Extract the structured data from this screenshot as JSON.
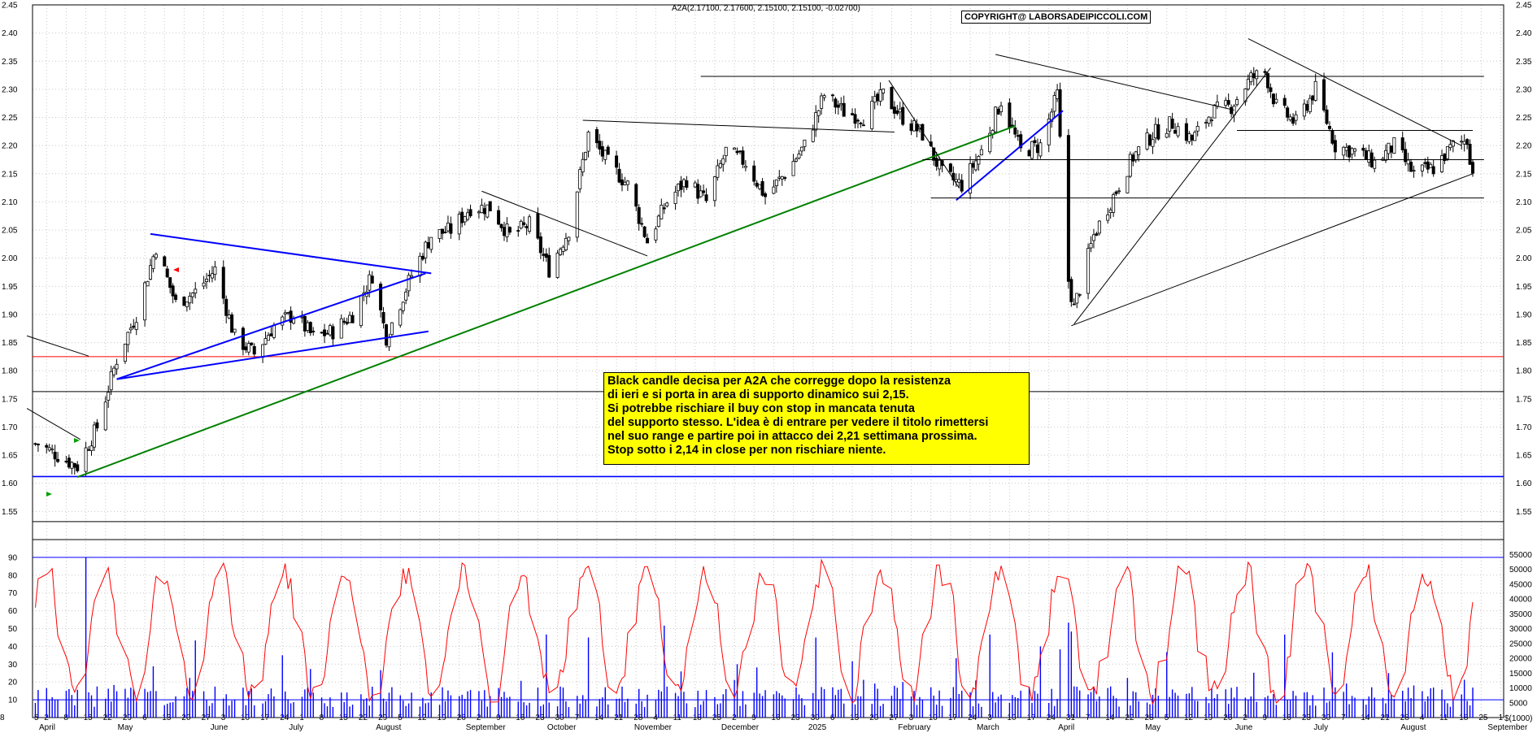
{
  "header": {
    "ticker_info": "A2A(2.17100, 2.17600, 2.15100, 2.15100, -0.02700)",
    "copyright": "COPYRIGHT@ LABORSADEIPICCOLI.COM"
  },
  "annotation": {
    "lines": [
      "Black candle decisa per A2A che corregge dopo la resistenza",
      "di ieri e si porta in area di supporto dinamico sui 2,15.",
      "Si potrebbe rischiare il buy con stop in mancata tenuta",
      "del supporto stesso. L'idea è di entrare per vedere il titolo rimettersi",
      "nel suo range e partire poi in attacco dei 2,21 settimana prossima.",
      "Stop sotto i 2,14 in close per non rischiare niente."
    ]
  },
  "colors": {
    "price": "#000000",
    "support_blue": "#0000ff",
    "trend_green": "#008000",
    "resistance_red": "#ff0000",
    "volume": "#0000ff",
    "oscillator": "#ff0000",
    "annotation_bg": "#ffff00"
  },
  "chart_data": [
    {
      "type": "candlestick",
      "title": "A2A(2.17100, 2.17600, 2.15100, 2.15100, -0.02700)",
      "ylim": [
        1.5,
        2.45
      ],
      "y_ticks": [
        "1.55",
        "1.60",
        "1.65",
        "1.70",
        "1.75",
        "1.80",
        "1.85",
        "1.90",
        "1.95",
        "2.00",
        "2.05",
        "2.10",
        "2.15",
        "2.20",
        "2.25",
        "2.30",
        "2.35",
        "2.40",
        "2.45"
      ],
      "x_day_ticks": [
        "5",
        "2",
        "8",
        "15",
        "22",
        "29",
        "6",
        "13",
        "20",
        "27",
        "3",
        "10",
        "17",
        "24",
        "1",
        "8",
        "15",
        "22",
        "29",
        "5",
        "12",
        "19",
        "26",
        "2",
        "9",
        "16",
        "23",
        "30",
        "7",
        "14",
        "21",
        "28",
        "4",
        "11",
        "18",
        "25",
        "2",
        "9",
        "16",
        "23",
        "30",
        "6",
        "13",
        "20",
        "27",
        "3",
        "10",
        "17",
        "24",
        "3",
        "10",
        "17",
        "24",
        "31",
        "7",
        "14",
        "22",
        "28",
        "5",
        "12",
        "19",
        "26",
        "2",
        "9",
        "16",
        "23",
        "30",
        "7",
        "14",
        "21",
        "28",
        "4",
        "11",
        "18",
        "25",
        "1",
        "8"
      ],
      "x_month_labels": [
        "April",
        "May",
        "June",
        "July",
        "August",
        "September",
        "October",
        "November",
        "December",
        "2025",
        "February",
        "March",
        "April",
        "May",
        "June",
        "July",
        "August",
        "September"
      ],
      "last_ohlc": {
        "open": 2.171,
        "high": 2.176,
        "low": 2.151,
        "close": 2.151,
        "change": -0.027
      },
      "close_path": [
        [
          "2024-04-05",
          1.67
        ],
        [
          "2024-04-19",
          1.63
        ],
        [
          "2024-04-26",
          1.7
        ],
        [
          "2024-05-03",
          1.82
        ],
        [
          "2024-05-10",
          1.9
        ],
        [
          "2024-05-17",
          2.02
        ],
        [
          "2024-05-24",
          1.92
        ],
        [
          "2024-05-31",
          1.94
        ],
        [
          "2024-06-07",
          1.98
        ],
        [
          "2024-06-14",
          1.86
        ],
        [
          "2024-06-21",
          1.83
        ],
        [
          "2024-06-28",
          1.88
        ],
        [
          "2024-07-05",
          1.9
        ],
        [
          "2024-07-12",
          1.86
        ],
        [
          "2024-07-19",
          1.87
        ],
        [
          "2024-07-26",
          1.9
        ],
        [
          "2024-08-02",
          1.97
        ],
        [
          "2024-08-07",
          1.86
        ],
        [
          "2024-08-16",
          1.97
        ],
        [
          "2024-08-23",
          2.04
        ],
        [
          "2024-08-30",
          2.05
        ],
        [
          "2024-09-06",
          2.09
        ],
        [
          "2024-09-13",
          2.09
        ],
        [
          "2024-09-20",
          2.04
        ],
        [
          "2024-09-27",
          2.06
        ],
        [
          "2024-10-04",
          1.98
        ],
        [
          "2024-10-11",
          2.05
        ],
        [
          "2024-10-18",
          2.22
        ],
        [
          "2024-10-25",
          2.17
        ],
        [
          "2024-11-01",
          2.13
        ],
        [
          "2024-11-08",
          2.03
        ],
        [
          "2024-11-15",
          2.1
        ],
        [
          "2024-11-22",
          2.14
        ],
        [
          "2024-11-29",
          2.1
        ],
        [
          "2024-12-06",
          2.19
        ],
        [
          "2024-12-13",
          2.17
        ],
        [
          "2024-12-20",
          2.11
        ],
        [
          "2024-12-27",
          2.15
        ],
        [
          "2025-01-03",
          2.2
        ],
        [
          "2025-01-10",
          2.29
        ],
        [
          "2025-01-17",
          2.26
        ],
        [
          "2025-01-24",
          2.25
        ],
        [
          "2025-01-31",
          2.29
        ],
        [
          "2025-02-07",
          2.25
        ],
        [
          "2025-02-14",
          2.22
        ],
        [
          "2025-02-21",
          2.15
        ],
        [
          "2025-02-28",
          2.13
        ],
        [
          "2025-03-07",
          2.19
        ],
        [
          "2025-03-14",
          2.28
        ],
        [
          "2025-03-21",
          2.19
        ],
        [
          "2025-03-28",
          2.2
        ],
        [
          "2025-04-03",
          2.29
        ],
        [
          "2025-04-07",
          1.96
        ],
        [
          "2025-04-09",
          1.91
        ],
        [
          "2025-04-16",
          2.04
        ],
        [
          "2025-04-23",
          2.11
        ],
        [
          "2025-04-30",
          2.18
        ],
        [
          "2025-05-07",
          2.22
        ],
        [
          "2025-05-14",
          2.24
        ],
        [
          "2025-05-21",
          2.21
        ],
        [
          "2025-05-28",
          2.26
        ],
        [
          "2025-06-04",
          2.27
        ],
        [
          "2025-06-11",
          2.32
        ],
        [
          "2025-06-16",
          2.33
        ],
        [
          "2025-06-20",
          2.27
        ],
        [
          "2025-06-27",
          2.24
        ],
        [
          "2025-07-04",
          2.3
        ],
        [
          "2025-07-11",
          2.2
        ],
        [
          "2025-07-18",
          2.19
        ],
        [
          "2025-07-25",
          2.17
        ],
        [
          "2025-08-01",
          2.2
        ],
        [
          "2025-08-08",
          2.15
        ],
        [
          "2025-08-15",
          2.16
        ],
        [
          "2025-08-22",
          2.2
        ],
        [
          "2025-08-27",
          2.21
        ],
        [
          "2025-08-29",
          2.151
        ]
      ],
      "horizontal_lines": [
        {
          "y": 1.612,
          "color": "#0000ff"
        },
        {
          "y": 1.763,
          "color": "#000000"
        },
        {
          "y": 1.825,
          "color": "#ff0000"
        },
        {
          "y": 1.532,
          "color": "#000000"
        }
      ],
      "segment_lines": [
        {
          "from": [
            "2024-04-19",
            1.611
          ],
          "to": [
            "2025-03-19",
            2.235
          ],
          "color": "#008000"
        },
        {
          "from": [
            "2024-05-03",
            1.785
          ],
          "to": [
            "2024-08-21",
            1.973
          ],
          "color": "#0000ff"
        },
        {
          "from": [
            "2024-05-15",
            2.043
          ],
          "to": [
            "2024-08-23",
            1.973
          ],
          "color": "#0000ff"
        },
        {
          "from": [
            "2024-05-03",
            1.785
          ],
          "to": [
            "2024-08-22",
            1.87
          ],
          "color": "#0000ff"
        },
        {
          "from": [
            "2025-02-26",
            2.103
          ],
          "to": [
            "2025-04-05",
            2.262
          ],
          "color": "#0000ff"
        },
        {
          "from": [
            "2024-04-01",
            1.862
          ],
          "to": [
            "2024-04-23",
            1.826
          ],
          "color": "#000000"
        },
        {
          "from": [
            "2024-04-01",
            1.733
          ],
          "to": [
            "2024-04-20",
            1.678
          ],
          "color": "#000000"
        },
        {
          "from": [
            "2024-09-10",
            2.119
          ],
          "to": [
            "2024-11-08",
            2.004
          ],
          "color": "#000000"
        },
        {
          "from": [
            "2024-10-16",
            2.245
          ],
          "to": [
            "2025-02-04",
            2.224
          ],
          "color": "#000000"
        },
        {
          "from": [
            "2024-11-27",
            2.323
          ],
          "to": [
            "2025-09-02",
            2.323
          ],
          "color": "#000000"
        },
        {
          "from": [
            "2025-02-14",
            2.175
          ],
          "to": [
            "2025-09-02",
            2.175
          ],
          "color": "#000000"
        },
        {
          "from": [
            "2025-02-17",
            2.107
          ],
          "to": [
            "2025-09-02",
            2.107
          ],
          "color": "#000000"
        },
        {
          "from": [
            "2025-06-06",
            2.227
          ],
          "to": [
            "2025-08-29",
            2.227
          ],
          "color": "#000000"
        },
        {
          "from": [
            "2025-02-02",
            2.316
          ],
          "to": [
            "2025-02-27",
            2.125
          ],
          "color": "#000000"
        },
        {
          "from": [
            "2025-03-12",
            2.362
          ],
          "to": [
            "2025-06-05",
            2.263
          ],
          "color": "#000000"
        },
        {
          "from": [
            "2025-06-10",
            2.39
          ],
          "to": [
            "2025-08-25",
            2.2
          ],
          "color": "#000000"
        },
        {
          "from": [
            "2025-04-08",
            1.88
          ],
          "to": [
            "2025-08-29",
            2.15
          ],
          "color": "#000000"
        },
        {
          "from": [
            "2025-04-09",
            1.883
          ],
          "to": [
            "2025-06-18",
            2.338
          ],
          "color": "#000000"
        }
      ]
    },
    {
      "type": "bar+line",
      "left_ylim": [
        0,
        100
      ],
      "left_ticks": [
        "10",
        "20",
        "30",
        "40",
        "50",
        "60",
        "70",
        "80",
        "90"
      ],
      "right_ticks": [
        "5000",
        "10000",
        "15000",
        "20000",
        "25000",
        "30000",
        "35000",
        "40000",
        "45000",
        "50000",
        "55000"
      ],
      "right_unit": "$(1000)",
      "upper_level": 90,
      "lower_level": 10,
      "volume_spikes": [
        [
          "2024-04-22",
          54000
        ],
        [
          "2024-05-31",
          26000
        ],
        [
          "2024-07-01",
          21000
        ],
        [
          "2024-08-05",
          16000
        ],
        [
          "2024-10-03",
          28000
        ],
        [
          "2024-10-18",
          27000
        ],
        [
          "2024-11-14",
          31000
        ],
        [
          "2024-12-10",
          18000
        ],
        [
          "2025-01-07",
          27000
        ],
        [
          "2025-01-20",
          19000
        ],
        [
          "2025-02-26",
          20000
        ],
        [
          "2025-03-10",
          28000
        ],
        [
          "2025-03-28",
          24000
        ],
        [
          "2025-04-04",
          23000
        ],
        [
          "2025-04-07",
          32000
        ],
        [
          "2025-04-08",
          29000
        ],
        [
          "2025-05-12",
          22000
        ],
        [
          "2025-06-23",
          28000
        ],
        [
          "2025-07-10",
          22000
        ],
        [
          "2025-07-30",
          15000
        ]
      ]
    }
  ]
}
